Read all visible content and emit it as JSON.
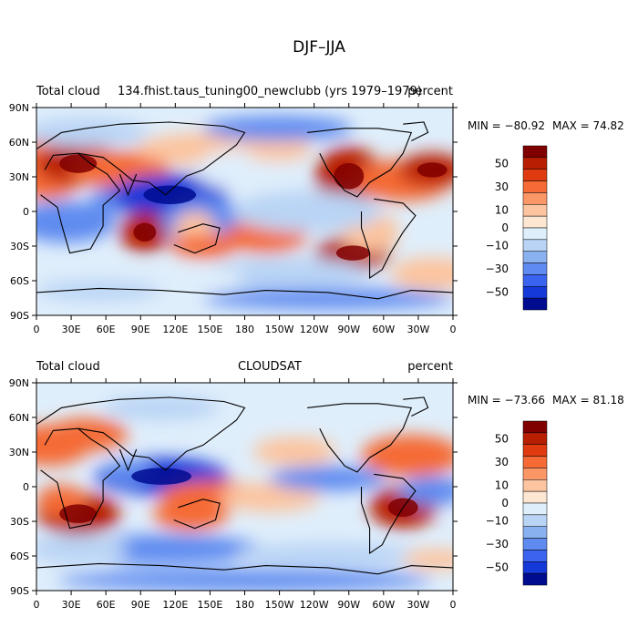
{
  "chart_data": {
    "type": "heatmap",
    "title": "DJF–JJA",
    "colorbar_levels": [
      -60,
      -50,
      -40,
      -30,
      -20,
      -10,
      0,
      10,
      20,
      30,
      40,
      50,
      60
    ],
    "colorbar_labels": [
      "50",
      "30",
      "10",
      "0",
      "−10",
      "−30",
      "−50"
    ],
    "colorbar_colors": [
      "#800000",
      "#b81f00",
      "#e03a10",
      "#f56a35",
      "#fb9667",
      "#fcc49f",
      "#fde7d3",
      "#dfeefb",
      "#b9d4f5",
      "#8ab1ef",
      "#5f8bf0",
      "#3a63f0",
      "#1538d8",
      "#000c90"
    ],
    "x_ticks": [
      "0",
      "30E",
      "60E",
      "90E",
      "120E",
      "150E",
      "180",
      "150W",
      "120W",
      "90W",
      "60W",
      "30W",
      "0"
    ],
    "y_ticks": [
      "90N",
      "60N",
      "30N",
      "0",
      "30S",
      "60S",
      "90S"
    ],
    "panels": [
      {
        "left_title": "Total cloud",
        "center_title": "134.fhist.taus_tuning00_newclubb (yrs 1979–1979)",
        "right_title": "percent",
        "min_label": "MIN = −80.92",
        "max_label": "MAX = 74.82",
        "min": -80.92,
        "max": 74.82
      },
      {
        "left_title": "Total cloud",
        "center_title": "CLOUDSAT",
        "right_title": "percent",
        "min_label": "MIN = −73.66",
        "max_label": "MAX = 81.18",
        "min": -73.66,
        "max": 81.18
      }
    ]
  }
}
